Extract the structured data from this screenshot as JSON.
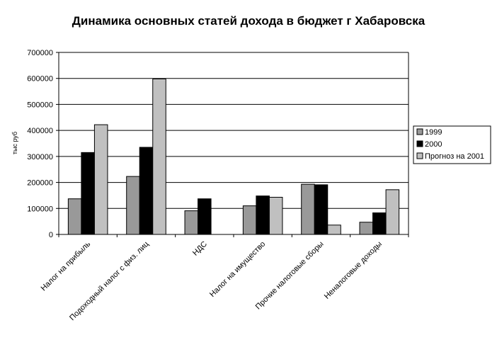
{
  "chart_data": {
    "type": "bar",
    "title": "Динамика основных статей дохода в бюджет г Хабаровска",
    "xlabel": "",
    "ylabel": "тыс руб",
    "ylim": [
      0,
      700000
    ],
    "yticks": [
      0,
      100000,
      200000,
      300000,
      400000,
      500000,
      600000,
      700000
    ],
    "ytick_labels": [
      "0",
      "100000",
      "200000",
      "300000",
      "400000",
      "500000",
      "600000",
      "700000"
    ],
    "grid": true,
    "legend_position": "right",
    "categories": [
      "Налог на прибыль",
      "Подоходный налог с физ. лиц",
      "НДС",
      "Налог на имущество",
      "Прочие налоговые сборы",
      "Неналоговые доходы"
    ],
    "series": [
      {
        "name": "1999",
        "color": "#999999",
        "values": [
          137000,
          223000,
          91000,
          110000,
          193000,
          47000
        ]
      },
      {
        "name": "2000",
        "color": "#000000",
        "values": [
          315000,
          335000,
          137000,
          148000,
          191000,
          83000
        ]
      },
      {
        "name": "Прогноз на 2001",
        "color": "#c0c0c0",
        "values": [
          422000,
          598000,
          null,
          143000,
          36000,
          172000
        ]
      }
    ]
  }
}
